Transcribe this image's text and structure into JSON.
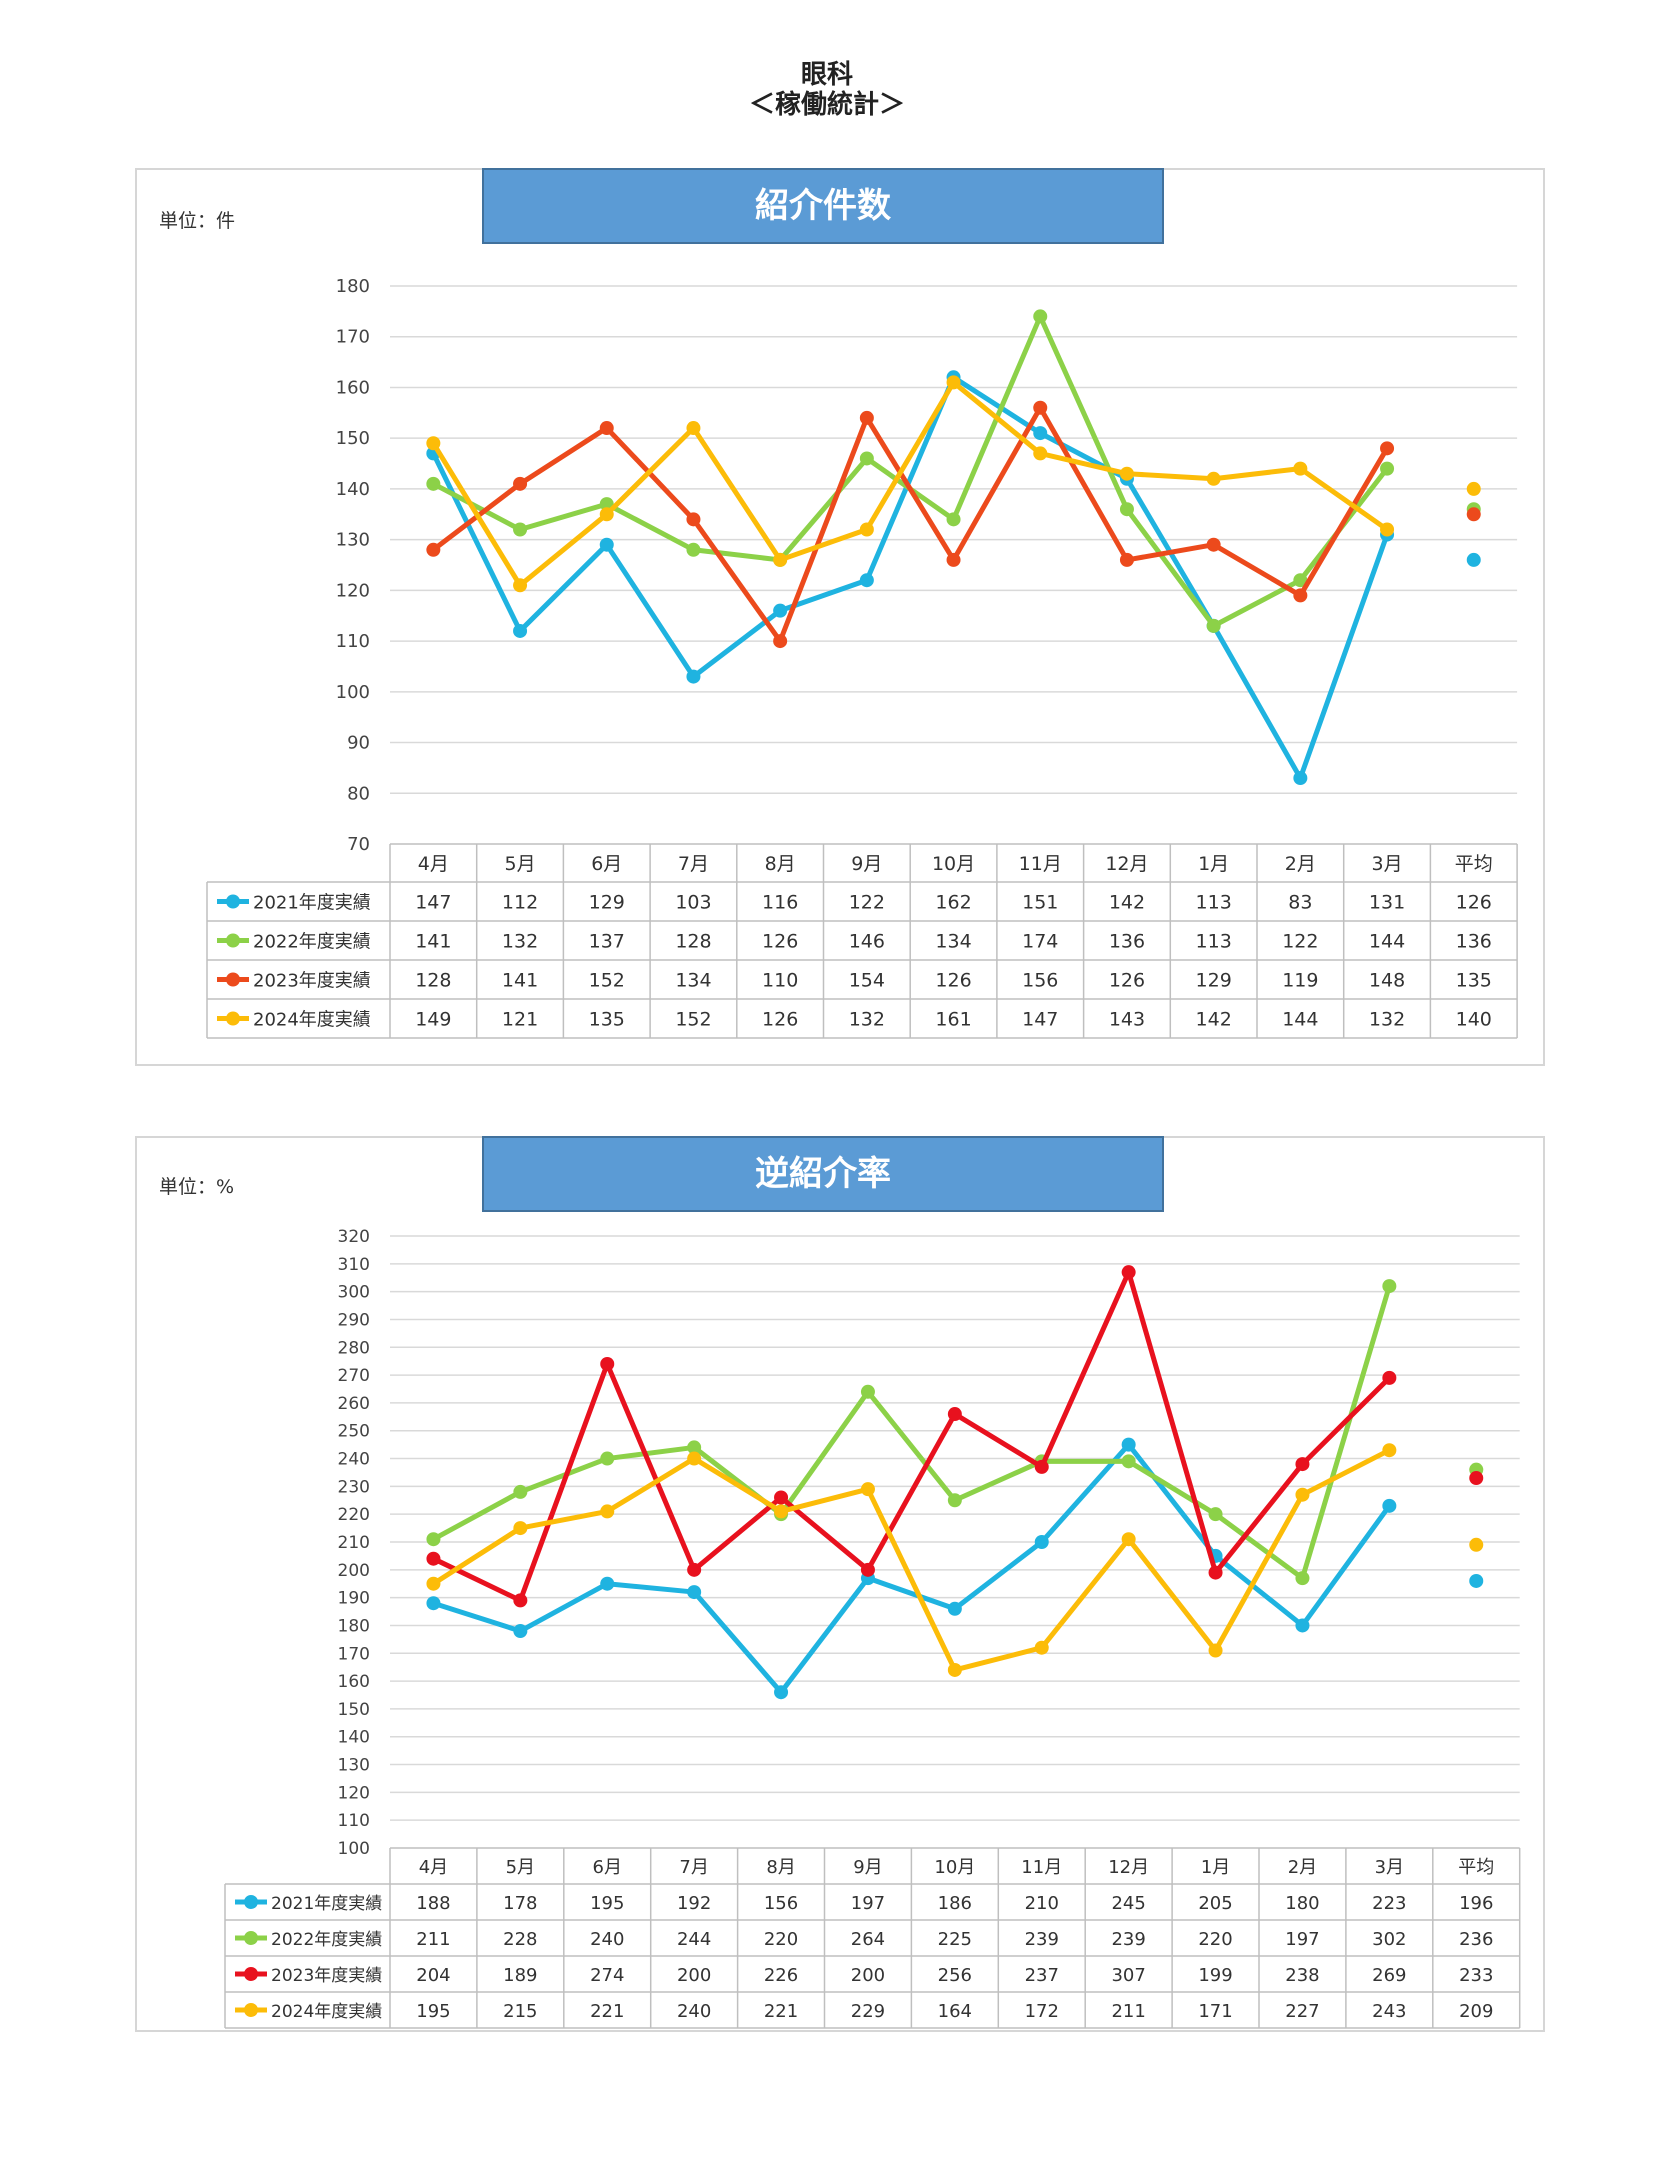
{
  "header": {
    "dept": "眼科",
    "subtitle": "＜稼働統計＞"
  },
  "colors": {
    "2021": "#1fb3e0",
    "2022": "#8cd148",
    "2023": "#e8231e",
    "2024": "#fcbc08",
    "title_bg": "#5b9bd5"
  },
  "chart_data": [
    {
      "type": "line",
      "title": "紹介件数",
      "unit_label": "単位：件",
      "categories": [
        "4月",
        "5月",
        "6月",
        "7月",
        "8月",
        "9月",
        "10月",
        "11月",
        "12月",
        "1月",
        "2月",
        "3月"
      ],
      "avg_label": "平均",
      "ylim": [
        70,
        180
      ],
      "ytick_step": 10,
      "grid": true,
      "legend": "table",
      "series": [
        {
          "name": "2021年度実績",
          "color": "#1fb3e0",
          "values": [
            147,
            112,
            129,
            103,
            116,
            122,
            162,
            151,
            142,
            113,
            83,
            131
          ],
          "avg": 126
        },
        {
          "name": "2022年度実績",
          "color": "#8cd148",
          "values": [
            141,
            132,
            137,
            128,
            126,
            146,
            134,
            174,
            136,
            113,
            122,
            144
          ],
          "avg": 136
        },
        {
          "name": "2023年度実績",
          "color": "#ec4a1c",
          "values": [
            128,
            141,
            152,
            134,
            110,
            154,
            126,
            156,
            126,
            129,
            119,
            148
          ],
          "avg": 135
        },
        {
          "name": "2024年度実績",
          "color": "#fcbc08",
          "values": [
            149,
            121,
            135,
            152,
            126,
            132,
            161,
            147,
            143,
            142,
            144,
            132
          ],
          "avg": 140
        }
      ]
    },
    {
      "type": "line",
      "title": "逆紹介率",
      "unit_label": "単位：%",
      "categories": [
        "4月",
        "5月",
        "6月",
        "7月",
        "8月",
        "9月",
        "10月",
        "11月",
        "12月",
        "1月",
        "2月",
        "3月"
      ],
      "avg_label": "平均",
      "ylim": [
        100,
        320
      ],
      "ytick_step": 10,
      "grid": true,
      "legend": "table",
      "series": [
        {
          "name": "2021年度実績",
          "color": "#1fb3e0",
          "values": [
            188,
            178,
            195,
            192,
            156,
            197,
            186,
            210,
            245,
            205,
            180,
            223
          ],
          "avg": 196
        },
        {
          "name": "2022年度実績",
          "color": "#8cd148",
          "values": [
            211,
            228,
            240,
            244,
            220,
            264,
            225,
            239,
            239,
            220,
            197,
            302
          ],
          "avg": 236
        },
        {
          "name": "2023年度実績",
          "color": "#e8111e",
          "values": [
            204,
            189,
            274,
            200,
            226,
            200,
            256,
            237,
            307,
            199,
            238,
            269
          ],
          "avg": 233
        },
        {
          "name": "2024年度実績",
          "color": "#fcbc08",
          "values": [
            195,
            215,
            221,
            240,
            221,
            229,
            164,
            172,
            211,
            171,
            227,
            243
          ],
          "avg": 209
        }
      ]
    }
  ]
}
